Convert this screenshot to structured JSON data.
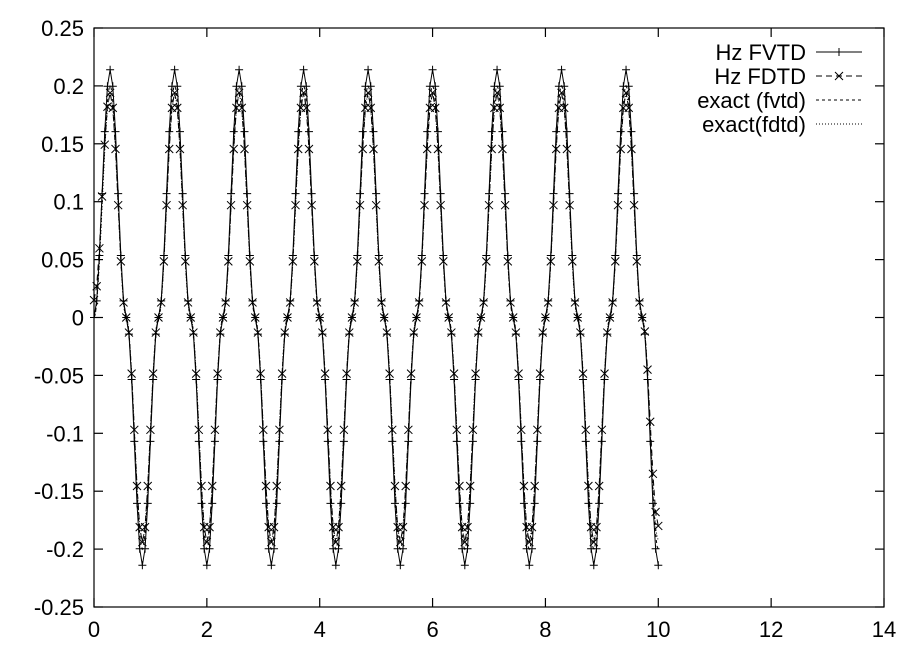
{
  "chart_data": {
    "type": "line",
    "title": "",
    "xlabel": "",
    "ylabel": "",
    "xlim": [
      0,
      14
    ],
    "ylim": [
      -0.25,
      0.25
    ],
    "xticks": [
      "0",
      "2",
      "4",
      "6",
      "8",
      "10",
      "12",
      "14"
    ],
    "yticks": [
      "0.25",
      "0.2",
      "0.15",
      "0.1",
      "0.05",
      "0",
      "-0.05",
      "-0.1",
      "-0.15",
      "-0.2",
      "-0.25"
    ],
    "grid": false,
    "legend_position": "top-right",
    "series": [
      {
        "name": "Hz FVTD",
        "line_style": "solid",
        "marker": "plus",
        "color": "#000000",
        "x": [
          0.0,
          0.2857,
          0.5714,
          0.8571,
          1.1429,
          1.4286,
          1.7143,
          2.0,
          2.2857,
          2.5714,
          2.8571,
          3.1429,
          3.4286,
          3.7143,
          4.0,
          4.2857,
          4.5714,
          4.8571,
          5.1429,
          5.4286,
          5.7143,
          6.0,
          6.2857,
          6.5714,
          6.8571,
          7.1429,
          7.4286,
          7.7143,
          8.0,
          8.2857,
          8.5714,
          8.8571,
          9.1429,
          9.4286,
          9.7143,
          10.0
        ],
        "y": [
          0.0,
          0.214,
          0.0,
          -0.214,
          0.0,
          0.214,
          0.0,
          -0.214,
          0.0,
          0.214,
          0.0,
          -0.214,
          0.0,
          0.214,
          0.0,
          -0.214,
          0.0,
          0.214,
          0.0,
          -0.214,
          0.0,
          0.214,
          0.0,
          -0.214,
          0.0,
          0.214,
          0.0,
          -0.214,
          0.0,
          0.214,
          0.0,
          -0.214,
          0.0,
          0.214,
          0.0,
          -0.214
        ]
      },
      {
        "name": "Hz FDTD",
        "line_style": "dashed",
        "marker": "x",
        "color": "#000000",
        "x": [
          0.0,
          0.2857,
          0.5714,
          0.8571,
          1.1429,
          1.4286,
          1.7143,
          2.0,
          2.2857,
          2.5714,
          2.8571,
          3.1429,
          3.4286,
          3.7143,
          4.0,
          4.2857,
          4.5714,
          4.8571,
          5.1429,
          5.4286,
          5.7143,
          6.0,
          6.2857,
          6.5714,
          6.8571,
          7.1429,
          7.4286,
          7.7143,
          8.0,
          8.2857,
          8.5714,
          8.8571,
          9.1429,
          9.4286,
          9.7143,
          10.0
        ],
        "y": [
          0.015,
          0.194,
          0.0,
          -0.194,
          0.0,
          0.194,
          0.0,
          -0.194,
          0.0,
          0.194,
          0.0,
          -0.194,
          0.0,
          0.194,
          0.0,
          -0.194,
          0.0,
          0.194,
          0.0,
          -0.194,
          0.0,
          0.194,
          0.0,
          -0.194,
          0.0,
          0.194,
          0.0,
          -0.194,
          0.0,
          0.194,
          0.0,
          -0.194,
          0.0,
          0.194,
          0.0,
          -0.18
        ]
      },
      {
        "name": "exact (fvtd)",
        "line_style": "dashed-fine",
        "marker": "none",
        "color": "#000000",
        "x": [
          0.0,
          0.2857,
          0.5714,
          0.8571,
          1.1429,
          1.4286,
          1.7143,
          2.0,
          2.2857,
          2.5714,
          2.8571,
          3.1429,
          3.4286,
          3.7143,
          4.0,
          4.2857,
          4.5714,
          4.8571,
          5.1429,
          5.4286,
          5.7143,
          6.0,
          6.2857,
          6.5714,
          6.8571,
          7.1429,
          7.4286,
          7.7143,
          8.0,
          8.2857,
          8.5714,
          8.8571,
          9.1429,
          9.4286,
          9.7143,
          10.0
        ],
        "y": [
          0.0,
          0.2,
          0.0,
          -0.2,
          0.0,
          0.2,
          0.0,
          -0.2,
          0.0,
          0.2,
          0.0,
          -0.2,
          0.0,
          0.2,
          0.0,
          -0.2,
          0.0,
          0.2,
          0.0,
          -0.2,
          0.0,
          0.2,
          0.0,
          -0.2,
          0.0,
          0.2,
          0.0,
          -0.2,
          0.0,
          0.2,
          0.0,
          -0.2,
          0.0,
          0.2,
          0.0,
          -0.2
        ]
      },
      {
        "name": "exact(fdtd)",
        "line_style": "dotted",
        "marker": "none",
        "color": "#000000",
        "x": [
          0.0,
          0.2857,
          0.5714,
          0.8571,
          1.1429,
          1.4286,
          1.7143,
          2.0,
          2.2857,
          2.5714,
          2.8571,
          3.1429,
          3.4286,
          3.7143,
          4.0,
          4.2857,
          4.5714,
          4.8571,
          5.1429,
          5.4286,
          5.7143,
          6.0,
          6.2857,
          6.5714,
          6.8571,
          7.1429,
          7.4286,
          7.7143,
          8.0,
          8.2857,
          8.5714,
          8.8571,
          9.1429,
          9.4286,
          9.7143,
          10.0
        ],
        "y": [
          0.0,
          0.192,
          0.0,
          -0.192,
          0.0,
          0.192,
          0.0,
          -0.192,
          0.0,
          0.192,
          0.0,
          -0.192,
          0.0,
          0.192,
          0.0,
          -0.192,
          0.0,
          0.192,
          0.0,
          -0.192,
          0.0,
          0.192,
          0.0,
          -0.192,
          0.0,
          0.192,
          0.0,
          -0.192,
          0.0,
          0.192,
          0.0,
          -0.192,
          0.0,
          0.192,
          0.0,
          -0.192
        ]
      }
    ]
  }
}
